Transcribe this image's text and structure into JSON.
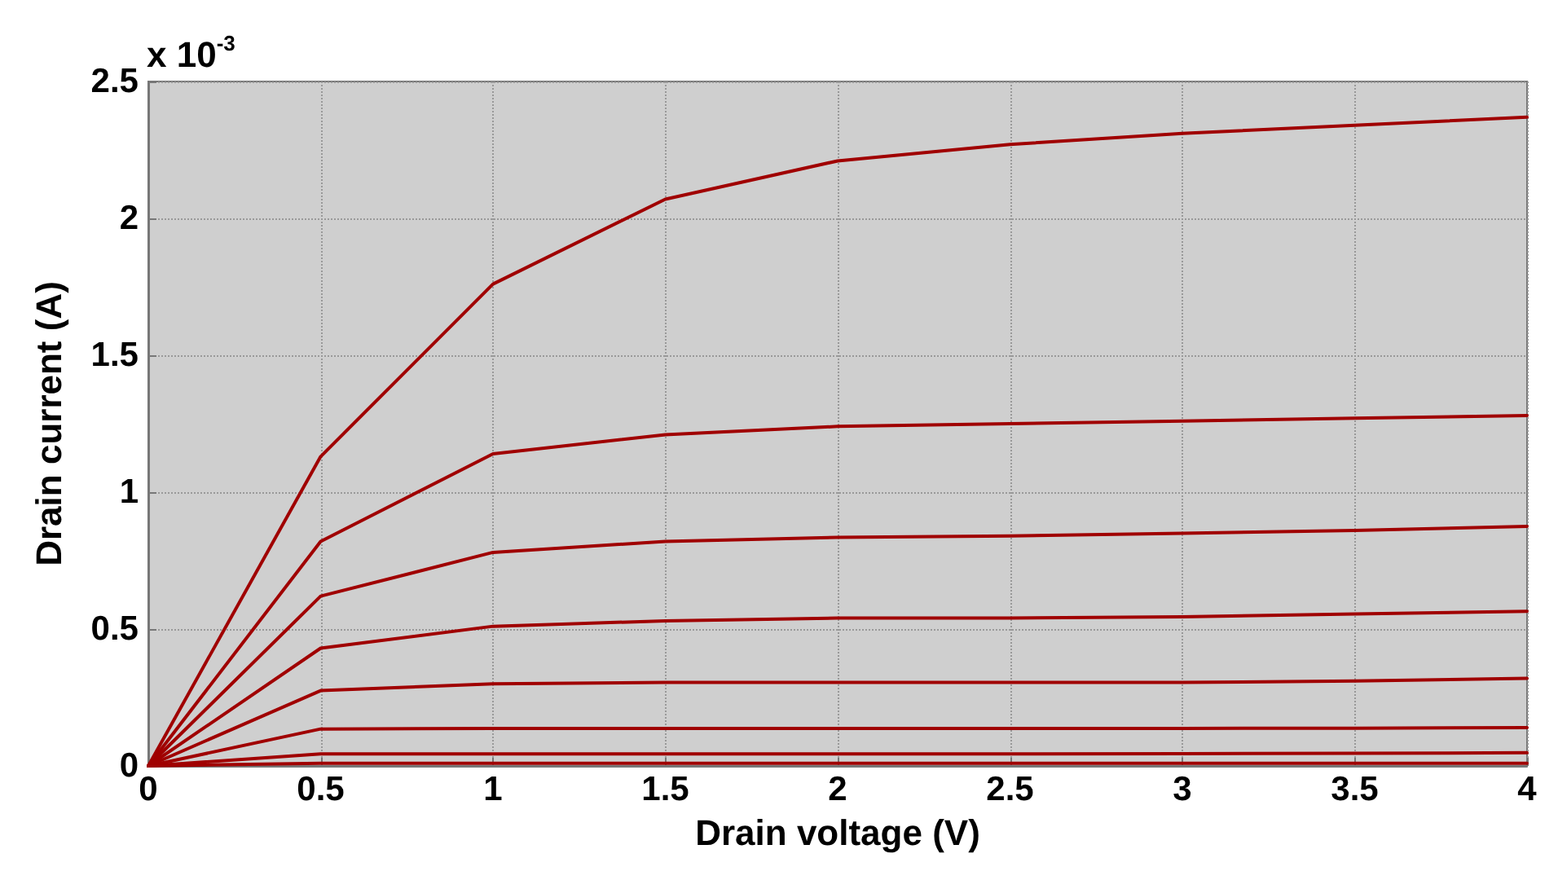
{
  "chart_data": {
    "type": "line",
    "xlabel": "Drain voltage (V)",
    "ylabel": "Drain current (A)",
    "annotations": [
      "x 10$^{-3}$"
    ],
    "x": [
      0,
      0.5,
      1,
      1.5,
      2,
      2.5,
      3,
      3.5,
      4
    ],
    "series": [
      {
        "color": "#a00000",
        "values": [
          0,
          1.13,
          1.76,
          2.07,
          2.21,
          2.27,
          2.31,
          2.34,
          2.37
        ]
      },
      {
        "color": "#a00000",
        "values": [
          0,
          0.82,
          1.14,
          1.21,
          1.24,
          1.25,
          1.26,
          1.27,
          1.28
        ]
      },
      {
        "color": "#a00000",
        "values": [
          0,
          0.62,
          0.78,
          0.82,
          0.835,
          0.84,
          0.85,
          0.86,
          0.875
        ]
      },
      {
        "color": "#a00000",
        "values": [
          0,
          0.43,
          0.51,
          0.53,
          0.54,
          0.54,
          0.545,
          0.555,
          0.565
        ]
      },
      {
        "color": "#a00000",
        "values": [
          0,
          0.275,
          0.3,
          0.305,
          0.305,
          0.305,
          0.305,
          0.31,
          0.32
        ]
      },
      {
        "color": "#a00000",
        "values": [
          0,
          0.135,
          0.137,
          0.137,
          0.137,
          0.137,
          0.137,
          0.138,
          0.14
        ]
      },
      {
        "color": "#a00000",
        "values": [
          0,
          0.044,
          0.044,
          0.044,
          0.044,
          0.044,
          0.045,
          0.046,
          0.048
        ]
      },
      {
        "color": "#a00000",
        "values": [
          0,
          0.01,
          0.01,
          0.01,
          0.01,
          0.01,
          0.01,
          0.01,
          0.01
        ]
      }
    ],
    "xlim": [
      0,
      4
    ],
    "xticks": [
      0,
      0.5,
      1,
      1.5,
      2,
      2.5,
      3,
      3.5,
      4
    ],
    "ylim": [
      0,
      2.5
    ],
    "yticks": [
      0,
      0.5,
      1,
      1.5,
      2,
      2.5
    ],
    "grid": true,
    "marker": "none",
    "line_style": "solid"
  }
}
